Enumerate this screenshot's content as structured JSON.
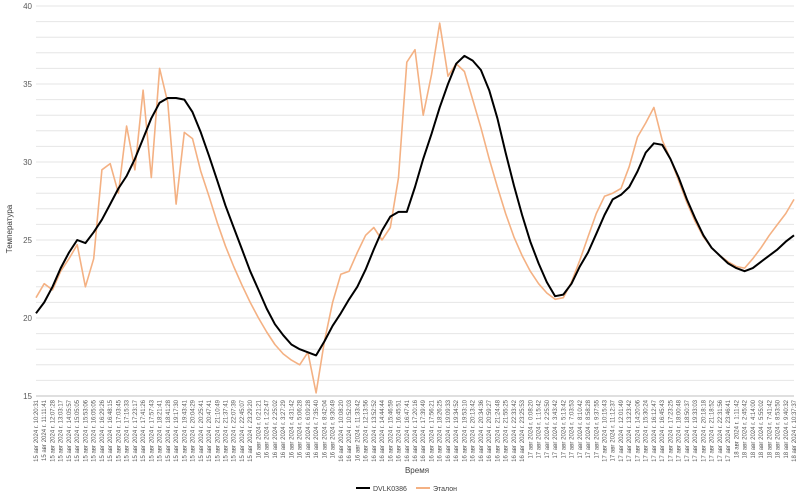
{
  "chart_data": {
    "type": "line",
    "xlabel": "Время",
    "ylabel": "Температура",
    "ylim": [
      15,
      40
    ],
    "yticks": [
      15,
      20,
      25,
      30,
      35,
      40
    ],
    "grid": true,
    "legend_position": "bottom",
    "x": [
      "15 авг 2024 г. 10:20:31",
      "15 авг 2024 г. 11:11:41",
      "15 авг 2024 г. 12:07:28",
      "15 авг 2024 г. 13:03:17",
      "15 авг 2024 г. 14:05:57",
      "15 авг 2024 г. 15:05:05",
      "15 авг 2024 г. 15:53:06",
      "15 авг 2024 г. 16:05:05",
      "15 авг 2024 г. 16:29:26",
      "15 авг 2024 г. 16:48:15",
      "15 авг 2024 г. 17:03:45",
      "15 авг 2024 г. 17:15:33",
      "15 авг 2024 г. 17:23:17",
      "15 авг 2024 г. 17:41:26",
      "15 авг 2024 г. 17:57:43",
      "15 авг 2024 г. 18:21:41",
      "15 авг 2024 г. 18:41:28",
      "15 авг 2024 г. 19:17:30",
      "15 авг 2024 г. 19:43:41",
      "15 авг 2024 г. 20:04:29",
      "15 авг 2024 г. 20:25:41",
      "15 авг 2024 г. 20:47:41",
      "15 авг 2024 г. 21:10:49",
      "15 авг 2024 г. 21:37:41",
      "15 авг 2024 г. 22:07:39",
      "15 авг 2024 г. 22:45:07",
      "15 авг 2024 г. 23:29:20",
      "16 авг 2024 г. 0:21:21",
      "16 авг 2024 г. 1:22:47",
      "16 авг 2024 г. 2:25:02",
      "16 авг 2024 г. 3:27:29",
      "16 авг 2024 г. 4:31:42",
      "16 авг 2024 г. 5:06:28",
      "16 авг 2024 г. 6:09:28",
      "16 авг 2024 г. 7:35:40",
      "16 авг 2024 г. 8:42:04",
      "16 авг 2024 г. 9:30:49",
      "16 авг 2024 г. 10:08:20",
      "16 авг 2024 г. 10:52:03",
      "16 авг 2024 г. 11:33:42",
      "16 авг 2024 г. 12:13:56",
      "16 авг 2024 г. 13:52:52",
      "16 авг 2024 г. 14:44:44",
      "16 авг 2024 г. 15:46:59",
      "16 авг 2024 г. 16:45:51",
      "16 авг 2024 г. 16:47:41",
      "16 авг 2024 г. 17:20:16",
      "16 авг 2024 г. 17:39:49",
      "16 авг 2024 г. 17:56:21",
      "16 авг 2024 г. 18:26:25",
      "16 авг 2024 г. 19:09:33",
      "16 авг 2024 г. 19:34:52",
      "16 авг 2024 г. 19:53:10",
      "16 авг 2024 г. 20:13:42",
      "16 авг 2024 г. 20:34:36",
      "16 авг 2024 г. 20:59:27",
      "16 авг 2024 г. 21:24:48",
      "16 авг 2024 г. 21:55:25",
      "16 авг 2024 г. 22:33:42",
      "16 авг 2024 г. 23:25:53",
      "17 авг 2024 г. 0:08:20",
      "17 авг 2024 г. 1:15:42",
      "17 авг 2024 г. 2:25:50",
      "17 авг 2024 г. 3:43:42",
      "17 авг 2024 г. 5:13:42",
      "17 авг 2024 г. 7:03:53",
      "17 авг 2024 г. 8:10:42",
      "17 авг 2024 г. 8:58:28",
      "17 авг 2024 г. 9:37:55",
      "17 авг 2024 г. 10:15:43",
      "17 авг 2024 г. 11:12:37",
      "17 авг 2024 г. 12:01:49",
      "17 авг 2024 г. 13:23:42",
      "17 авг 2024 г. 14:20:06",
      "17 авг 2024 г. 15:30:24",
      "17 авг 2024 г. 16:12:47",
      "17 авг 2024 г. 16:45:43",
      "17 авг 2024 г. 17:23:25",
      "17 авг 2024 г. 18:00:48",
      "17 авг 2024 г. 18:50:37",
      "17 авг 2024 г. 19:33:03",
      "17 авг 2024 г. 20:18:18",
      "17 авг 2024 г. 21:18:52",
      "17 авг 2024 г. 22:31:56",
      "17 авг 2024 г. 23:46:41",
      "18 авг 2024 г. 1:11:42",
      "18 авг 2024 г. 2:45:42",
      "18 авг 2024 г. 4:14:00",
      "18 авг 2024 г. 5:55:02",
      "18 авг 2024 г. 7:41:42",
      "18 авг 2024 г. 8:53:50",
      "18 авг 2024 г. 9:40:32",
      "18 авг 2024 г. 10:37:37"
    ],
    "series": [
      {
        "name": "DVLK0386",
        "color": "#000000",
        "values": [
          20.3,
          21.0,
          22.0,
          23.2,
          24.2,
          25.0,
          24.8,
          25.5,
          26.3,
          27.3,
          28.3,
          29.1,
          30.2,
          31.5,
          32.8,
          33.8,
          34.1,
          34.1,
          34.0,
          33.2,
          31.9,
          30.4,
          28.8,
          27.2,
          25.8,
          24.4,
          23.0,
          21.8,
          20.6,
          19.6,
          18.9,
          18.3,
          18.0,
          17.8,
          17.6,
          18.5,
          19.5,
          20.3,
          21.2,
          22.0,
          23.1,
          24.4,
          25.6,
          26.5,
          26.8,
          26.8,
          28.4,
          30.2,
          31.8,
          33.5,
          35.0,
          36.3,
          36.8,
          36.5,
          35.9,
          34.6,
          32.8,
          30.6,
          28.5,
          26.6,
          24.9,
          23.5,
          22.3,
          21.4,
          21.5,
          22.2,
          23.3,
          24.2,
          25.4,
          26.6,
          27.6,
          27.9,
          28.4,
          29.4,
          30.6,
          31.2,
          31.1,
          30.2,
          29.0,
          27.6,
          26.4,
          25.3,
          24.5,
          24.0,
          23.5,
          23.2,
          23.0,
          23.2,
          23.6,
          24.0,
          24.4,
          24.9,
          25.3
        ]
      },
      {
        "name": "Эталон",
        "color": "#f4b183",
        "values": [
          21.3,
          22.2,
          21.8,
          23.0,
          23.8,
          24.7,
          22.0,
          23.8,
          29.5,
          29.9,
          28.0,
          32.3,
          29.5,
          34.6,
          29.0,
          36.0,
          33.8,
          27.3,
          31.9,
          31.5,
          29.4,
          27.8,
          26.1,
          24.6,
          23.3,
          22.1,
          21.0,
          20.0,
          19.1,
          18.3,
          17.7,
          17.3,
          17.0,
          17.8,
          15.2,
          18.5,
          21.0,
          22.8,
          23.0,
          24.2,
          25.3,
          25.8,
          25.0,
          25.8,
          29.0,
          36.4,
          37.2,
          33.0,
          35.6,
          38.9,
          35.5,
          36.3,
          35.8,
          34.0,
          32.2,
          30.2,
          28.4,
          26.7,
          25.2,
          24.0,
          23.0,
          22.2,
          21.6,
          21.2,
          21.3,
          22.3,
          23.7,
          25.2,
          26.7,
          27.8,
          28.0,
          28.3,
          29.7,
          31.6,
          32.5,
          33.5,
          31.4,
          30.2,
          28.8,
          27.4,
          26.2,
          25.2,
          24.5,
          24.0,
          23.6,
          23.3,
          23.2,
          23.8,
          24.5,
          25.3,
          26.0,
          26.7,
          27.6
        ]
      }
    ]
  }
}
